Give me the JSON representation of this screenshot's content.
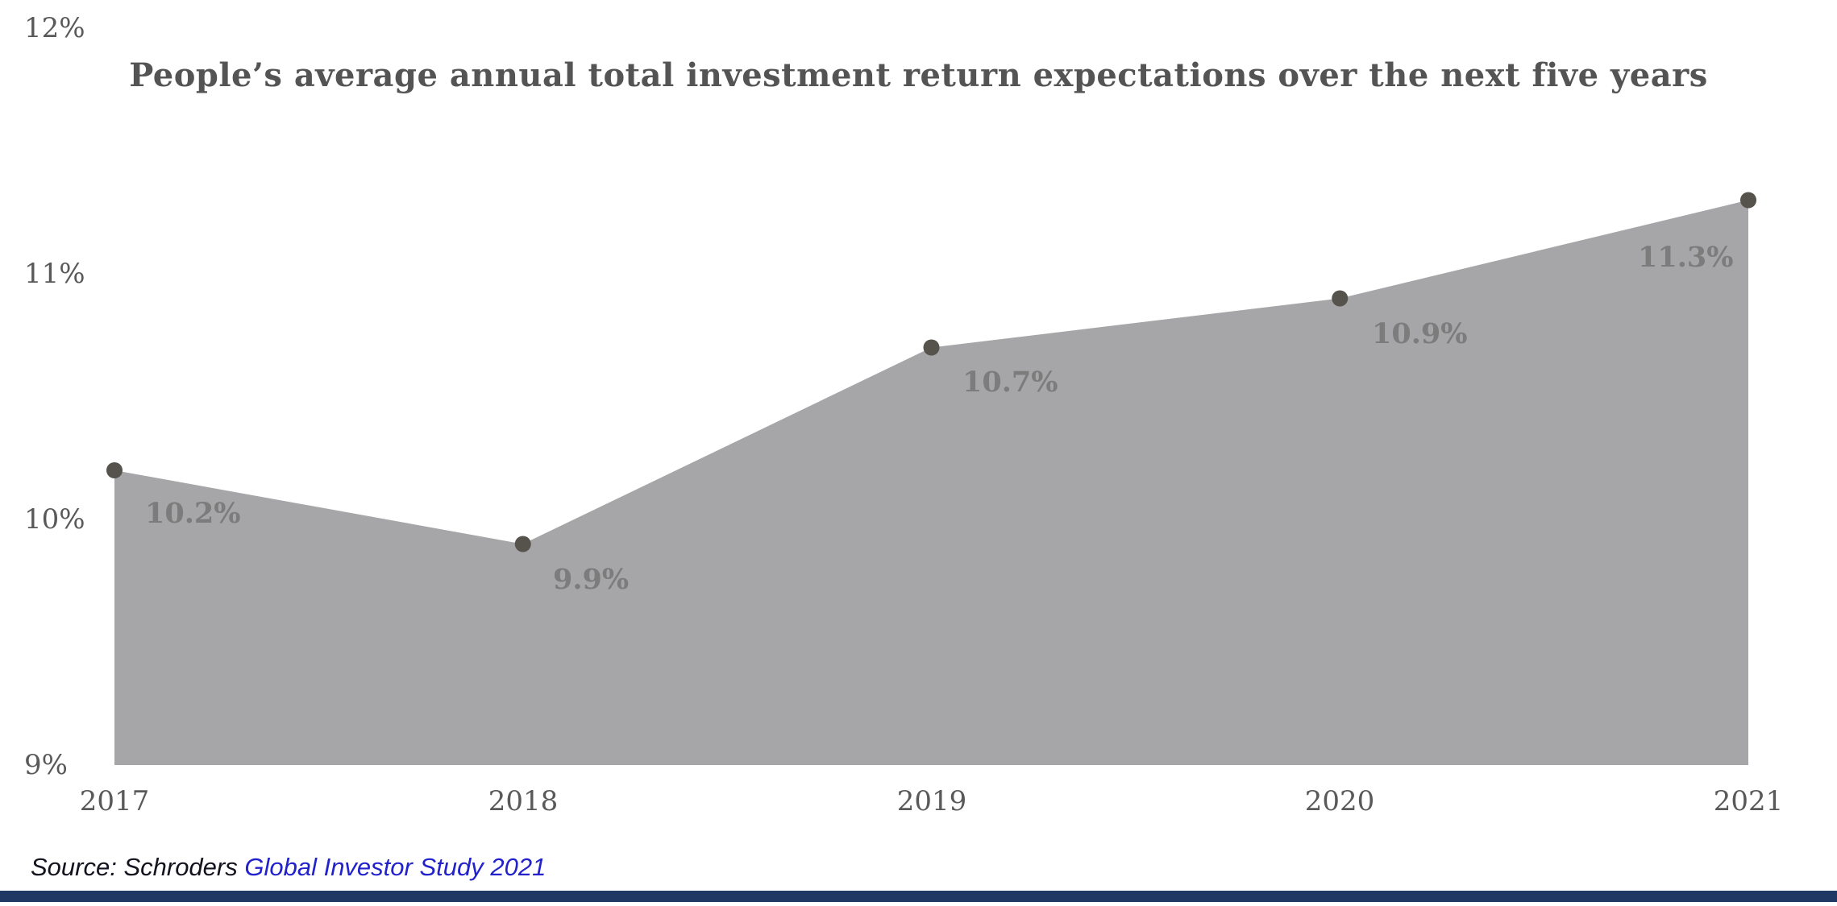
{
  "chart_data": {
    "type": "area",
    "title": "People’s average annual total investment return expectations over the next five years",
    "categories": [
      "2017",
      "2018",
      "2019",
      "2020",
      "2021"
    ],
    "values": [
      10.2,
      9.9,
      10.7,
      10.9,
      11.3
    ],
    "point_labels": [
      "10.2%",
      "9.9%",
      "10.7%",
      "10.9%",
      "11.3%"
    ],
    "ylim": [
      9,
      12
    ],
    "ytick_labels": [
      "9%",
      "10%",
      "11%",
      "12%"
    ],
    "grid": false,
    "legend": false,
    "xlabel": "",
    "ylabel": ""
  },
  "source": {
    "prefix": "Source: Schroders ",
    "link_text": "Global Investor Study 2021"
  },
  "colors": {
    "background": "#ffffff",
    "area": "#a6a5a7",
    "point": "#56524c",
    "title_text": "#545454",
    "tick_text": "#595959",
    "point_label_text": "#7c7c7c",
    "source_text": "#13131f",
    "link_text": "#2222cc",
    "footer_bar": "#1f3864"
  }
}
